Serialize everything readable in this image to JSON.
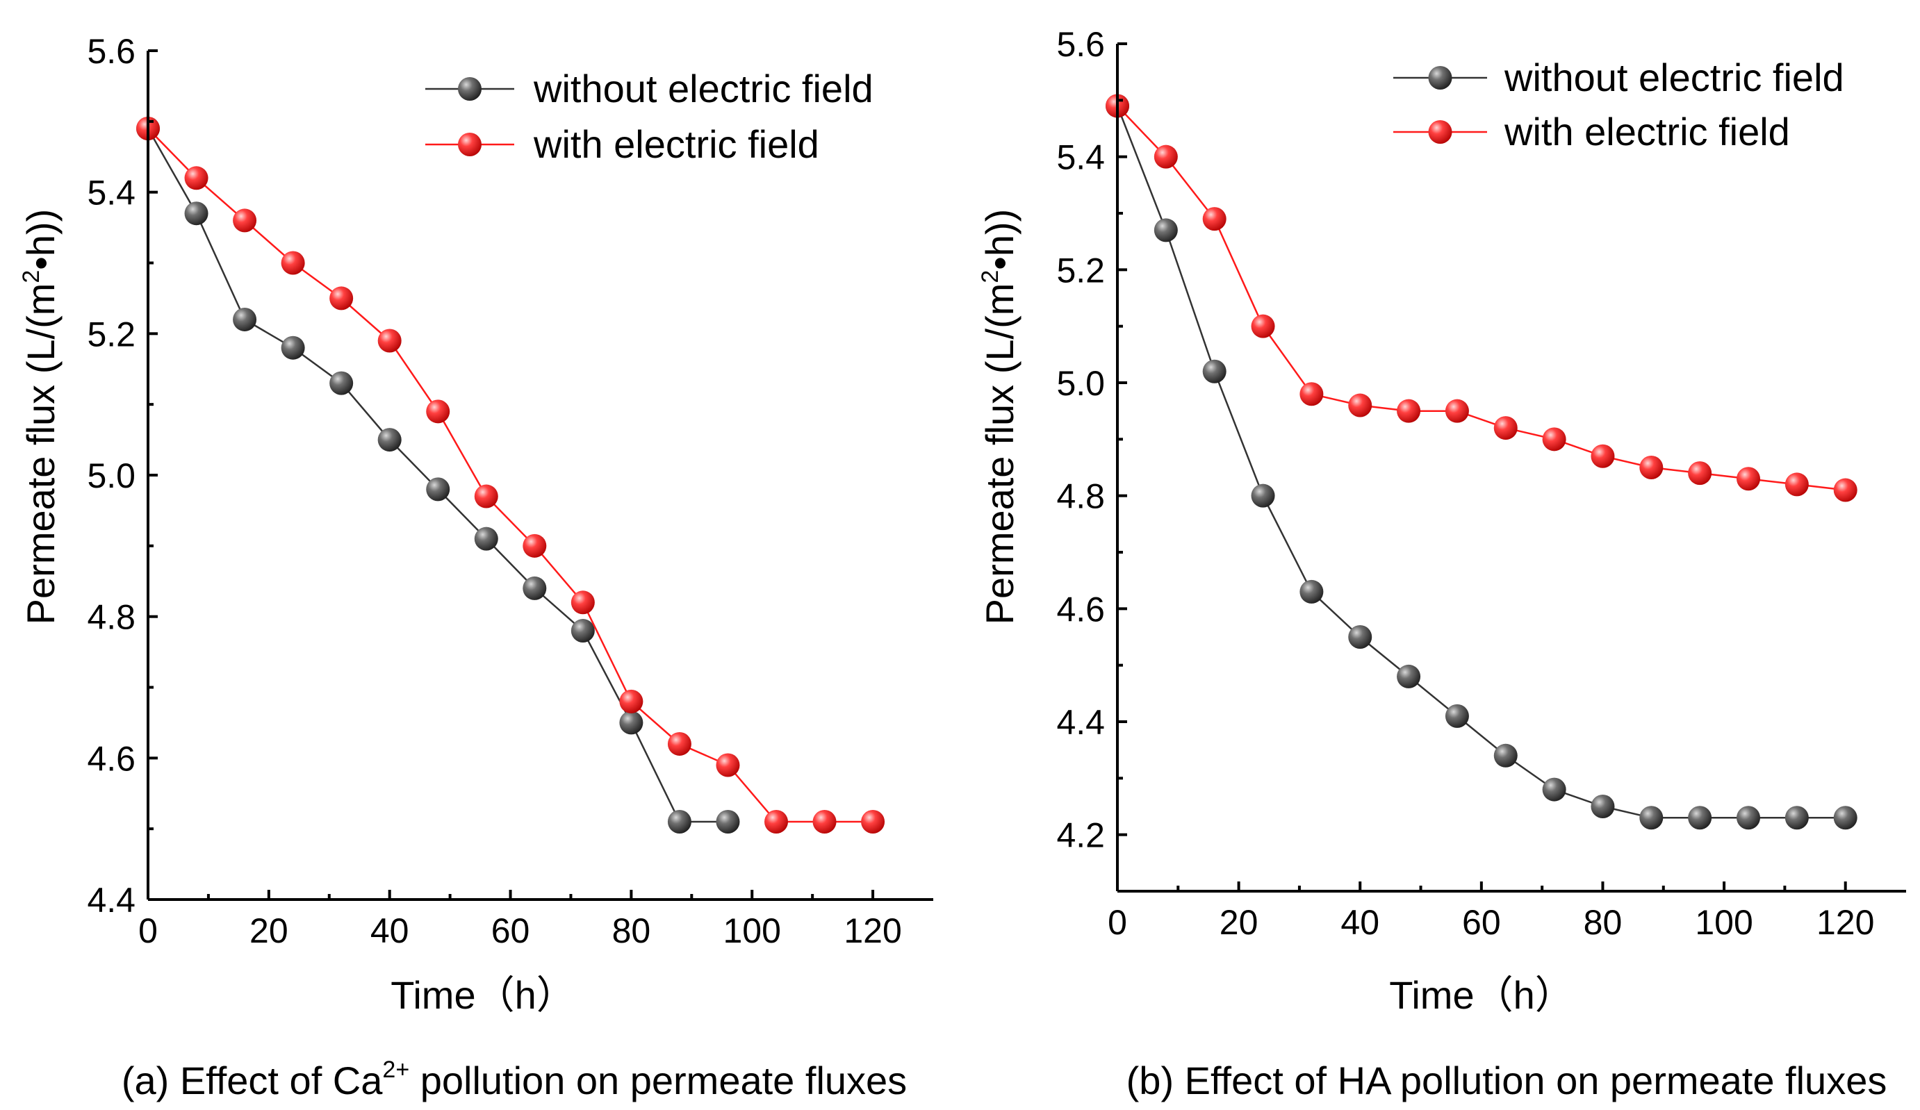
{
  "colors": {
    "without": "#333333",
    "with": "#ff1a1a",
    "axis": "#000000"
  },
  "chart_data": [
    {
      "type": "line",
      "caption_prefix": "(a) Effect of Ca",
      "caption_sup": "2+",
      "caption_suffix": " pollution on permeate fluxes",
      "xlabel": "Time（h）",
      "ylabel_prefix": "Permeate flux (L/(m",
      "ylabel_sup": "2",
      "ylabel_suffix": "•h))",
      "xlim": [
        0,
        130
      ],
      "ylim": [
        4.4,
        5.6
      ],
      "xticks": [
        0,
        20,
        40,
        60,
        80,
        100,
        120
      ],
      "yticks": [
        4.4,
        4.6,
        4.8,
        5.0,
        5.2,
        5.4,
        5.6
      ],
      "ytick_labels": [
        "4.4",
        "4.6",
        "4.8",
        "5.0",
        "5.2",
        "5.4",
        "5.6"
      ],
      "legend_position": "top-right",
      "series": [
        {
          "key": "without",
          "name": "without electric field",
          "x": [
            0,
            8,
            16,
            24,
            32,
            40,
            48,
            56,
            64,
            72,
            80,
            88,
            96
          ],
          "y": [
            5.49,
            5.37,
            5.22,
            5.18,
            5.13,
            5.05,
            4.98,
            4.91,
            4.84,
            4.78,
            4.65,
            4.51,
            4.51
          ]
        },
        {
          "key": "with",
          "name": "with electric field",
          "x": [
            0,
            8,
            16,
            24,
            32,
            40,
            48,
            56,
            64,
            72,
            80,
            88,
            96,
            104,
            112,
            120
          ],
          "y": [
            5.49,
            5.42,
            5.36,
            5.3,
            5.25,
            5.19,
            5.09,
            4.97,
            4.9,
            4.82,
            4.68,
            4.62,
            4.59,
            4.51,
            4.51,
            4.51
          ]
        }
      ]
    },
    {
      "type": "line",
      "caption_prefix": "(b) Effect of HA pollution on permeate fluxes",
      "caption_sup": "",
      "caption_suffix": "",
      "xlabel": "Time（h）",
      "ylabel_prefix": "Permeate flux (L/(m",
      "ylabel_sup": "2",
      "ylabel_suffix": "•h))",
      "xlim": [
        0,
        130
      ],
      "ylim": [
        4.1,
        5.6
      ],
      "xticks": [
        0,
        20,
        40,
        60,
        80,
        100,
        120
      ],
      "yticks": [
        4.2,
        4.4,
        4.6,
        4.8,
        5.0,
        5.2,
        5.4,
        5.6
      ],
      "ytick_labels": [
        "4.2",
        "4.4",
        "4.6",
        "4.8",
        "5.0",
        "5.2",
        "5.4",
        "5.6"
      ],
      "legend_position": "top-right",
      "series": [
        {
          "key": "without",
          "name": "without electric field",
          "x": [
            0,
            8,
            16,
            24,
            32,
            40,
            48,
            56,
            64,
            72,
            80,
            88,
            96,
            104,
            112,
            120
          ],
          "y": [
            5.49,
            5.27,
            5.02,
            4.8,
            4.63,
            4.55,
            4.48,
            4.41,
            4.34,
            4.28,
            4.25,
            4.23,
            4.23,
            4.23,
            4.23,
            4.23
          ]
        },
        {
          "key": "with",
          "name": "with electric field",
          "x": [
            0,
            8,
            16,
            24,
            32,
            40,
            48,
            56,
            64,
            72,
            80,
            88,
            96,
            104,
            112,
            120
          ],
          "y": [
            5.49,
            5.4,
            5.29,
            5.1,
            4.98,
            4.96,
            4.95,
            4.95,
            4.92,
            4.9,
            4.87,
            4.85,
            4.84,
            4.83,
            4.82,
            4.81
          ]
        }
      ]
    }
  ]
}
